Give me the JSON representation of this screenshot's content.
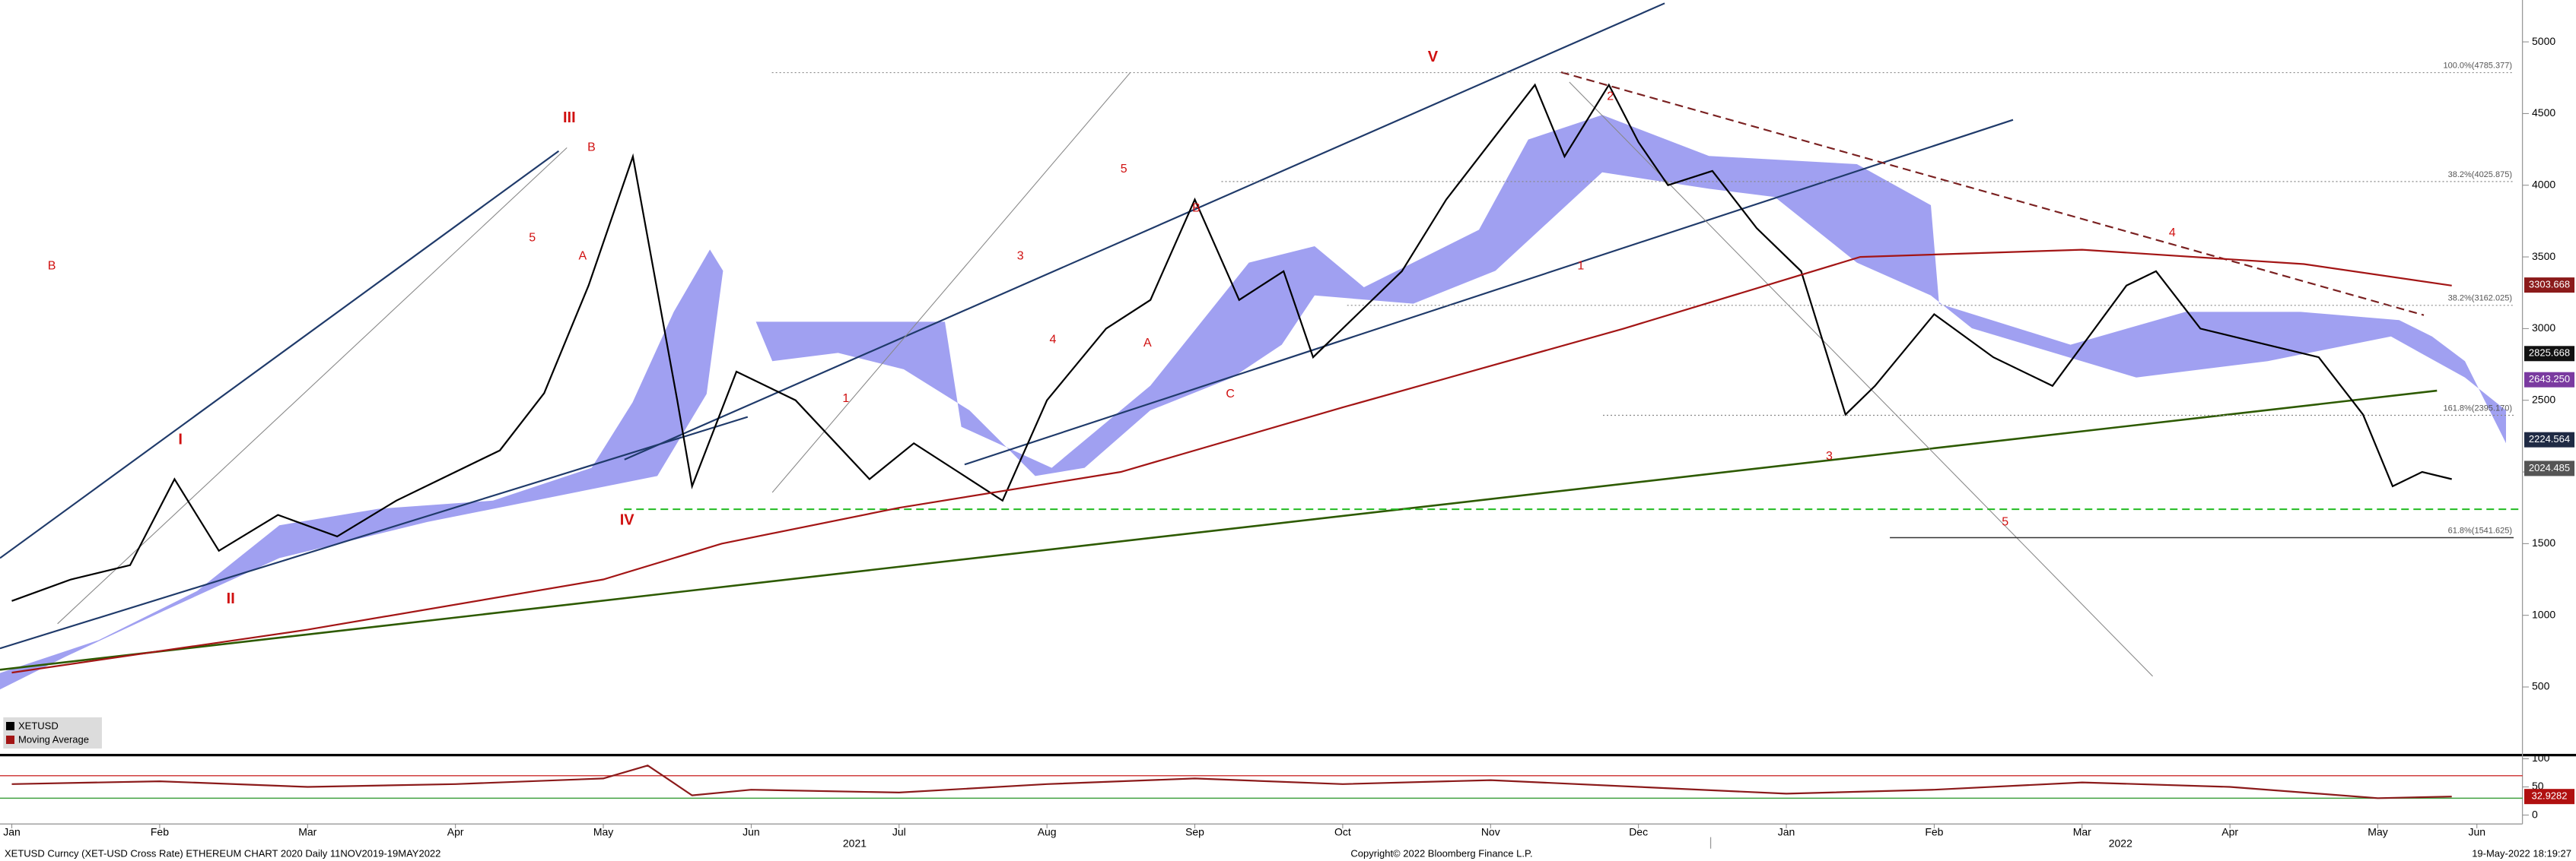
{
  "chart_data": [
    {
      "type": "line",
      "xlim": [
        -0.08,
        16.98
      ],
      "xticks": [
        {
          "value": 0,
          "label": "Jan"
        },
        {
          "value": 1,
          "label": "Feb"
        },
        {
          "value": 2,
          "label": "Mar"
        },
        {
          "value": 3,
          "label": "Apr"
        },
        {
          "value": 4,
          "label": "May"
        },
        {
          "value": 5,
          "label": "Jun"
        },
        {
          "value": 6,
          "label": "Jul"
        },
        {
          "value": 7,
          "label": "Aug"
        },
        {
          "value": 8,
          "label": "Sep"
        },
        {
          "value": 9,
          "label": "Oct"
        },
        {
          "value": 10,
          "label": "Nov"
        },
        {
          "value": 11,
          "label": "Dec"
        },
        {
          "value": 12,
          "label": "Jan"
        },
        {
          "value": 13,
          "label": "Feb"
        },
        {
          "value": 14,
          "label": "Mar"
        },
        {
          "value": 15,
          "label": "Apr"
        },
        {
          "value": 16,
          "label": "May"
        },
        {
          "value": 16.67,
          "label": "Jun"
        }
      ],
      "year_labels": [
        {
          "value": 5.7,
          "label": "2021"
        },
        {
          "value": 14.26,
          "label": "2022"
        }
      ],
      "ylim": [
        23,
        5292
      ],
      "yticks": [
        500,
        1000,
        1500,
        2000,
        2500,
        3000,
        3500,
        4000,
        4500,
        5000
      ],
      "legend": "bottom-left",
      "series": [
        {
          "name": "XETUSD",
          "color": "#000000",
          "x": [
            0.0,
            0.4,
            0.8,
            1.1,
            1.4,
            1.8,
            2.2,
            2.6,
            3.0,
            3.3,
            3.6,
            3.9,
            4.2,
            4.5,
            4.6,
            4.9,
            5.3,
            5.8,
            6.1,
            6.4,
            6.7,
            7.0,
            7.4,
            7.7,
            8.0,
            8.3,
            8.6,
            8.8,
            9.1,
            9.4,
            9.7,
            10.0,
            10.3,
            10.5,
            10.8,
            11.0,
            11.2,
            11.5,
            11.8,
            12.1,
            12.4,
            12.6,
            13.0,
            13.4,
            13.8,
            14.3,
            14.5,
            14.8,
            15.2,
            15.6,
            15.9,
            16.1,
            16.3,
            16.5
          ],
          "values": [
            1100,
            1250,
            1350,
            1950,
            1450,
            1700,
            1550,
            1800,
            2000,
            2150,
            2550,
            3300,
            4200,
            2500,
            1900,
            2700,
            2500,
            1950,
            2200,
            2000,
            1800,
            2500,
            3000,
            3200,
            3900,
            3200,
            3400,
            2800,
            3100,
            3400,
            3900,
            4300,
            4700,
            4200,
            4700,
            4300,
            4000,
            4100,
            3700,
            3400,
            2400,
            2600,
            3100,
            2800,
            2600,
            3300,
            3400,
            3000,
            2900,
            2800,
            2400,
            1900,
            2000,
            1950
          ]
        },
        {
          "name": "Moving Average",
          "color": "#a31515",
          "x": [
            0,
            2,
            4,
            4.8,
            6,
            7.5,
            9,
            10.9,
            12.5,
            14,
            15.5,
            16.5
          ],
          "values": [
            600,
            900,
            1250,
            1500,
            1750,
            2000,
            2450,
            3000,
            3500,
            3550,
            3450,
            3300
          ]
        }
      ],
      "hlines": [
        {
          "value": 1740,
          "color": "#22bb22",
          "x0": 4.14
        }
      ],
      "fib_levels": [
        {
          "label": "100.0%(4785.377)",
          "value": 4785.377,
          "x0": 5.14
        },
        {
          "label": "38.2%(4025.875)",
          "value": 4025.875,
          "x0": 8.18
        },
        {
          "label": "38.2%(3162.025)",
          "value": 3162.025,
          "x0": 9.03
        },
        {
          "label": "161.8%(2395.170)",
          "value": 2395.17,
          "x0": 10.76
        },
        {
          "label": "61.8%(1541.625)",
          "value": 1541.625,
          "x0": 12.7
        }
      ],
      "price_tags": [
        {
          "label": "3303.668",
          "value": 3303.668,
          "color": "#8b1a1a"
        },
        {
          "label": "2825.668",
          "value": 2825.668,
          "color": "#111111"
        },
        {
          "label": "2643.250",
          "value": 2643.25,
          "color": "#7a3aa0"
        },
        {
          "label": "2224.564",
          "value": 2224.564,
          "color": "#1f2a44"
        },
        {
          "label": "2024.485",
          "value": 2024.485,
          "color": "#555555"
        }
      ],
      "wave_labels": [
        {
          "text": "B",
          "x": 0.27,
          "y": 3436
        },
        {
          "text": "I",
          "x": 1.14,
          "y": 2222
        },
        {
          "text": "II",
          "x": 1.48,
          "y": 1111
        },
        {
          "text": "5",
          "x": 3.52,
          "y": 3631
        },
        {
          "text": "III",
          "x": 3.77,
          "y": 4467
        },
        {
          "text": "A",
          "x": 3.86,
          "y": 3505
        },
        {
          "text": "B",
          "x": 3.92,
          "y": 4261
        },
        {
          "text": "IV",
          "x": 4.16,
          "y": 1661
        },
        {
          "text": "1",
          "x": 5.64,
          "y": 2509
        },
        {
          "text": "3",
          "x": 6.82,
          "y": 3505
        },
        {
          "text": "4",
          "x": 7.04,
          "y": 2921
        },
        {
          "text": "5",
          "x": 7.52,
          "y": 4112
        },
        {
          "text": "A",
          "x": 7.68,
          "y": 2898
        },
        {
          "text": "B",
          "x": 8.01,
          "y": 3837
        },
        {
          "text": "C",
          "x": 8.24,
          "y": 2543
        },
        {
          "text": "V",
          "x": 9.61,
          "y": 4891
        },
        {
          "text": "1",
          "x": 10.61,
          "y": 3436
        },
        {
          "text": "2",
          "x": 10.81,
          "y": 4616
        },
        {
          "text": "3",
          "x": 12.29,
          "y": 2108
        },
        {
          "text": "5",
          "x": 13.48,
          "y": 1650
        },
        {
          "text": "4",
          "x": 14.61,
          "y": 3666
        }
      ]
    },
    {
      "type": "line",
      "xlim": [
        -0.08,
        16.98
      ],
      "ylim": [
        -10,
        106
      ],
      "yticks": [
        0,
        50,
        100
      ],
      "levels": [
        {
          "value": 70,
          "color": "#d04040"
        },
        {
          "value": 30,
          "color": "#40a040"
        }
      ],
      "series": [
        {
          "color": "#8b1a1a",
          "x": [
            0,
            1,
            2,
            3,
            4,
            4.3,
            4.6,
            5,
            6,
            7,
            8,
            9,
            10,
            11,
            12,
            13,
            14,
            15,
            16,
            16.5
          ],
          "values": [
            55,
            60,
            50,
            55,
            65,
            88,
            35,
            45,
            40,
            55,
            65,
            55,
            62,
            50,
            38,
            45,
            58,
            50,
            30,
            32.9282
          ]
        }
      ],
      "last_tag": {
        "label": "32.9282",
        "value": 32.9282,
        "color": "#b01010"
      }
    }
  ],
  "footer": {
    "left": "XETUSD Curncy (XET-USD Cross Rate) ETHEREUM CHART 2020  Daily 11NOV2019-19MAY2022",
    "center": "Copyright© 2022 Bloomberg Finance L.P.",
    "right": "19-May-2022 18:19:27"
  }
}
